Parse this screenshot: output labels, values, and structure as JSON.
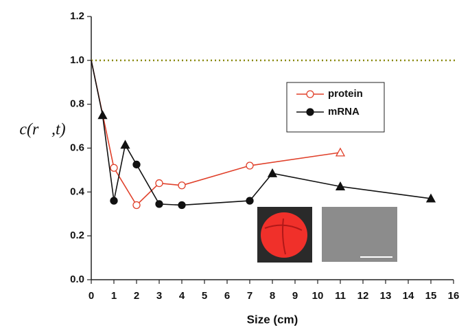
{
  "chart_data": {
    "type": "line",
    "x_label": "Size (cm)",
    "y_label": "c(r⃗,t)",
    "xlim": [
      0,
      16
    ],
    "xticks": [
      0,
      1,
      2,
      3,
      4,
      5,
      6,
      7,
      8,
      9,
      10,
      11,
      12,
      13,
      14,
      15,
      16
    ],
    "ylim": [
      0,
      1.2
    ],
    "yticks": [
      {
        "value": 0,
        "label": "0.0"
      },
      0.2,
      0.4,
      0.6,
      0.8,
      {
        "value": 1,
        "label": "1.0"
      },
      1.2
    ],
    "reference_line": {
      "value": 1,
      "color": "#8a8a10"
    },
    "series": [
      {
        "name": "protein",
        "color": "#e0402a",
        "marker_fill": "open",
        "x": [
          0,
          1,
          2,
          3,
          4,
          7,
          11
        ],
        "values": [
          1.0,
          0.51,
          0.34,
          0.44,
          0.43,
          0.52,
          0.58
        ],
        "markers": [
          null,
          "circle",
          "circle",
          "circle",
          "circle",
          "circle",
          "triangle"
        ]
      },
      {
        "name": "mRNA",
        "color": "#111111",
        "marker_fill": "filled",
        "x": [
          0,
          0.5,
          1,
          1.5,
          2,
          3,
          4,
          7,
          8,
          11,
          15
        ],
        "values": [
          1.0,
          0.75,
          0.36,
          0.615,
          0.525,
          0.345,
          0.34,
          0.36,
          0.485,
          0.425,
          0.37
        ],
        "markers": [
          null,
          "triangle",
          "circle",
          "triangle",
          "circle",
          "circle",
          "circle",
          "circle",
          "triangle",
          "triangle",
          "triangle"
        ]
      }
    ]
  }
}
